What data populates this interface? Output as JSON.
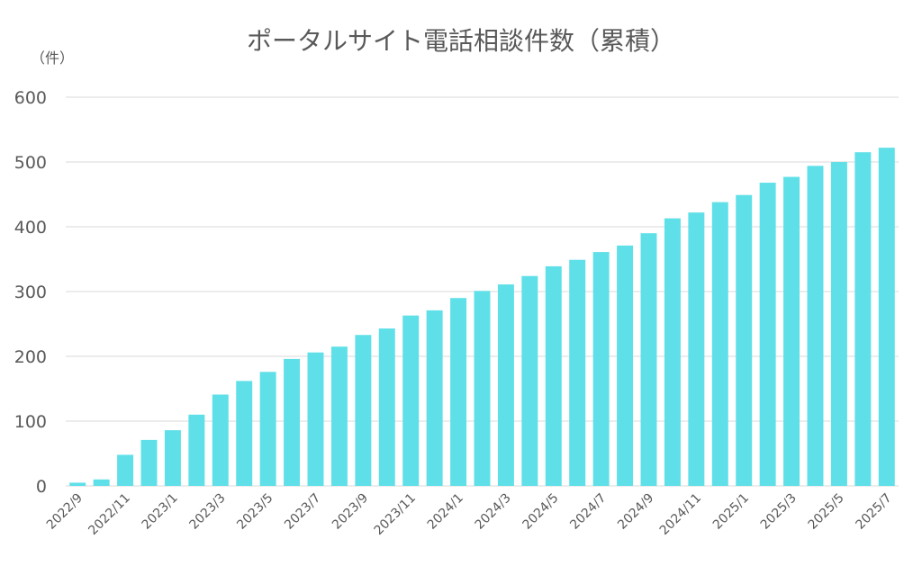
{
  "chart_data": {
    "type": "bar",
    "title": "ポータルサイト電話相談件数（累積）",
    "ylabel": "（件）",
    "xlabel": "",
    "ylim": [
      0,
      600
    ],
    "yticks": [
      0,
      100,
      200,
      300,
      400,
      500,
      600
    ],
    "grid": true,
    "bar_color": "#5fe0e8",
    "categories": [
      "2022/9",
      "2022/10",
      "2022/11",
      "2022/12",
      "2023/1",
      "2023/2",
      "2023/3",
      "2023/4",
      "2023/5",
      "2023/6",
      "2023/7",
      "2023/8",
      "2023/9",
      "2023/10",
      "2023/11",
      "2023/12",
      "2024/1",
      "2024/2",
      "2024/3",
      "2024/4",
      "2024/5",
      "2024/6",
      "2024/7",
      "2024/8",
      "2024/9",
      "2024/10",
      "2024/11",
      "2024/12",
      "2025/1",
      "2025/2",
      "2025/3",
      "2025/4",
      "2025/5",
      "2025/6",
      "2025/7"
    ],
    "tick_labels": [
      "2022/9",
      "2022/11",
      "2023/1",
      "2023/3",
      "2023/5",
      "2023/7",
      "2023/9",
      "2023/11",
      "2024/1",
      "2024/3",
      "2024/5",
      "2024/7",
      "2024/9",
      "2024/11",
      "2025/1",
      "2025/3",
      "2025/5",
      "2025/7"
    ],
    "values": [
      5,
      10,
      48,
      71,
      86,
      110,
      141,
      162,
      176,
      196,
      206,
      215,
      233,
      243,
      263,
      271,
      290,
      301,
      311,
      324,
      339,
      349,
      361,
      371,
      390,
      413,
      422,
      438,
      449,
      468,
      477,
      494,
      500,
      515,
      522
    ]
  }
}
